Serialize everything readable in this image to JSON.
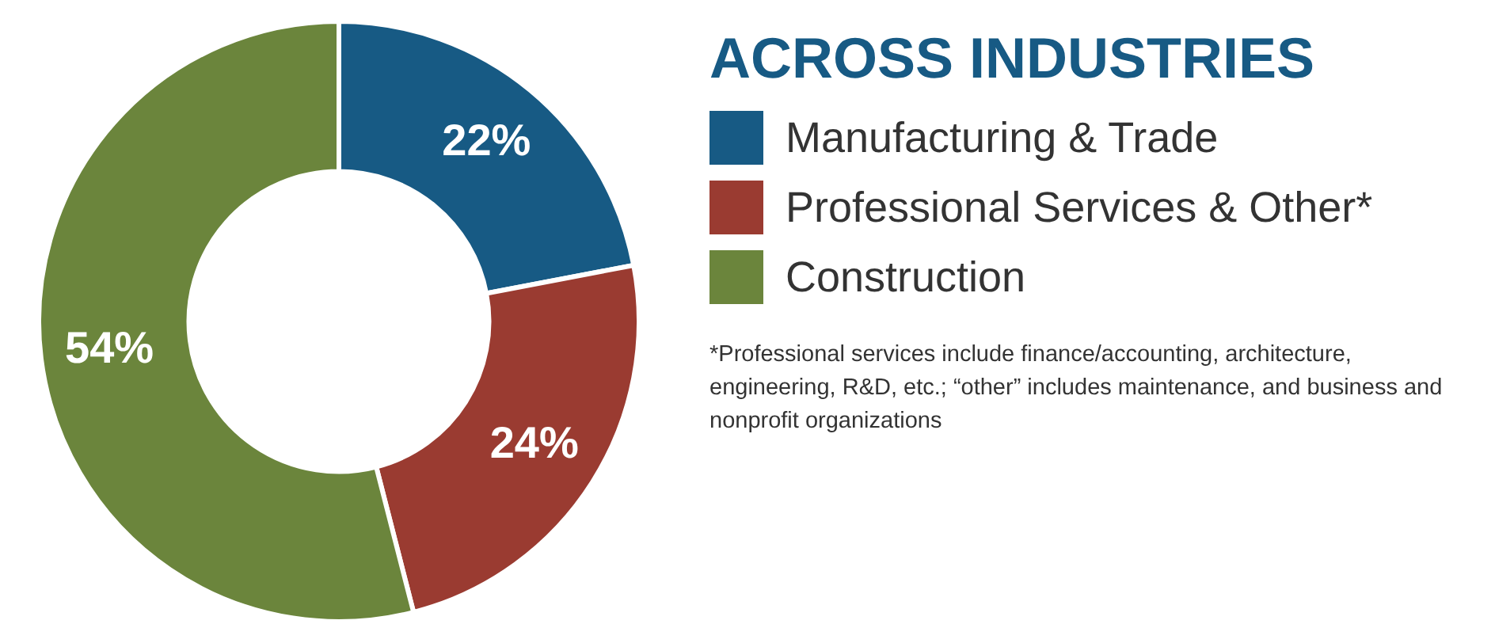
{
  "chart_data": {
    "type": "donut",
    "title": "ACROSS INDUSTRIES",
    "categories": [
      "Manufacturing & Trade",
      "Professional Services & Other*",
      "Construction"
    ],
    "values": [
      22,
      24,
      54
    ],
    "colors": [
      "#175a84",
      "#9a3b31",
      "#6b853c"
    ],
    "value_labels": [
      "22%",
      "24%",
      "54%"
    ],
    "legend": "right",
    "annotations": [
      "*Professional services include finance/accounting, architecture, engineering, R&D, etc.; “other” includes maintenance, and business and nonprofit organizations"
    ]
  }
}
